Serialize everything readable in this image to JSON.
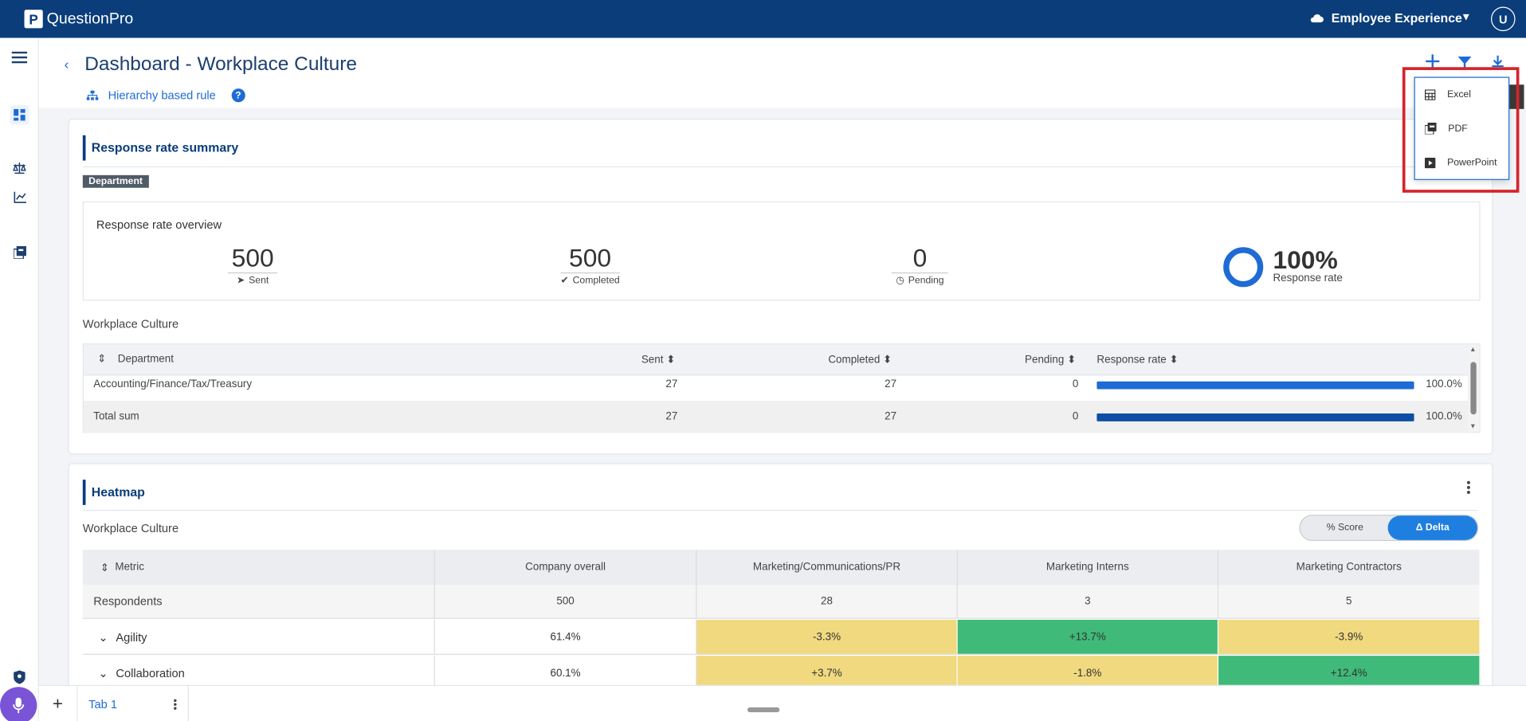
{
  "app": {
    "logo_letter": "P",
    "logo_text": "QuestionPro",
    "product": "Employee Experience",
    "user_initial": "U"
  },
  "header": {
    "title": "Dashboard - Workplace Culture",
    "hierarchy_rule": "Hierarchy based rule",
    "help": "?"
  },
  "response_card": {
    "title": "Response rate summary",
    "badge": "Department",
    "overview_label": "Response rate overview",
    "sent": {
      "value": "500",
      "label": "Sent"
    },
    "completed": {
      "value": "500",
      "label": "Completed"
    },
    "pending": {
      "value": "0",
      "label": "Pending"
    },
    "rate": {
      "value": "100%",
      "label": "Response rate",
      "fraction": 1.0
    },
    "section_label": "Workplace Culture",
    "columns": {
      "department": "Department",
      "sent": "Sent",
      "completed": "Completed",
      "pending": "Pending",
      "rate": "Response rate"
    },
    "rows": [
      {
        "department": "Accounting/Finance/Tax/Treasury",
        "sent": "27",
        "completed": "27",
        "pending": "0",
        "rate": "100.0%",
        "fraction": 1.0
      },
      {
        "department": "Total sum",
        "sent": "27",
        "completed": "27",
        "pending": "0",
        "rate": "100.0%",
        "fraction": 1.0
      }
    ]
  },
  "heatmap_card": {
    "title": "Heatmap",
    "section_label": "Workplace Culture",
    "toggle": {
      "score": "% Score",
      "delta": "Δ Delta"
    },
    "columns": [
      "Metric",
      "Company overall",
      "Marketing/Communications/PR",
      "Marketing Interns",
      "Marketing Contractors"
    ],
    "respondents": {
      "label": "Respondents",
      "values": [
        "500",
        "28",
        "3",
        "5"
      ]
    },
    "rows": [
      {
        "metric": "Agility",
        "overall": "61.4%",
        "cells": [
          "-3.3%",
          "+13.7%",
          "-3.9%"
        ],
        "colors": [
          "#f0d97f",
          "#3fba78",
          "#f0d97f"
        ]
      },
      {
        "metric": "Collaboration",
        "overall": "60.1%",
        "cells": [
          "+3.7%",
          "-1.8%",
          "+12.4%"
        ],
        "colors": [
          "#f0d97f",
          "#f0d97f",
          "#3fba78"
        ]
      }
    ]
  },
  "tabs": {
    "tab1": "Tab 1",
    "add": "+"
  },
  "export_menu": {
    "excel": "Excel",
    "pdf": "PDF",
    "powerpoint": "PowerPoint"
  },
  "colors": {
    "brand": "#0a3d7a",
    "accent": "#1e6bd6",
    "positive": "#3fba78",
    "neutral": "#f0d97f",
    "highlight": "#d6232a"
  }
}
